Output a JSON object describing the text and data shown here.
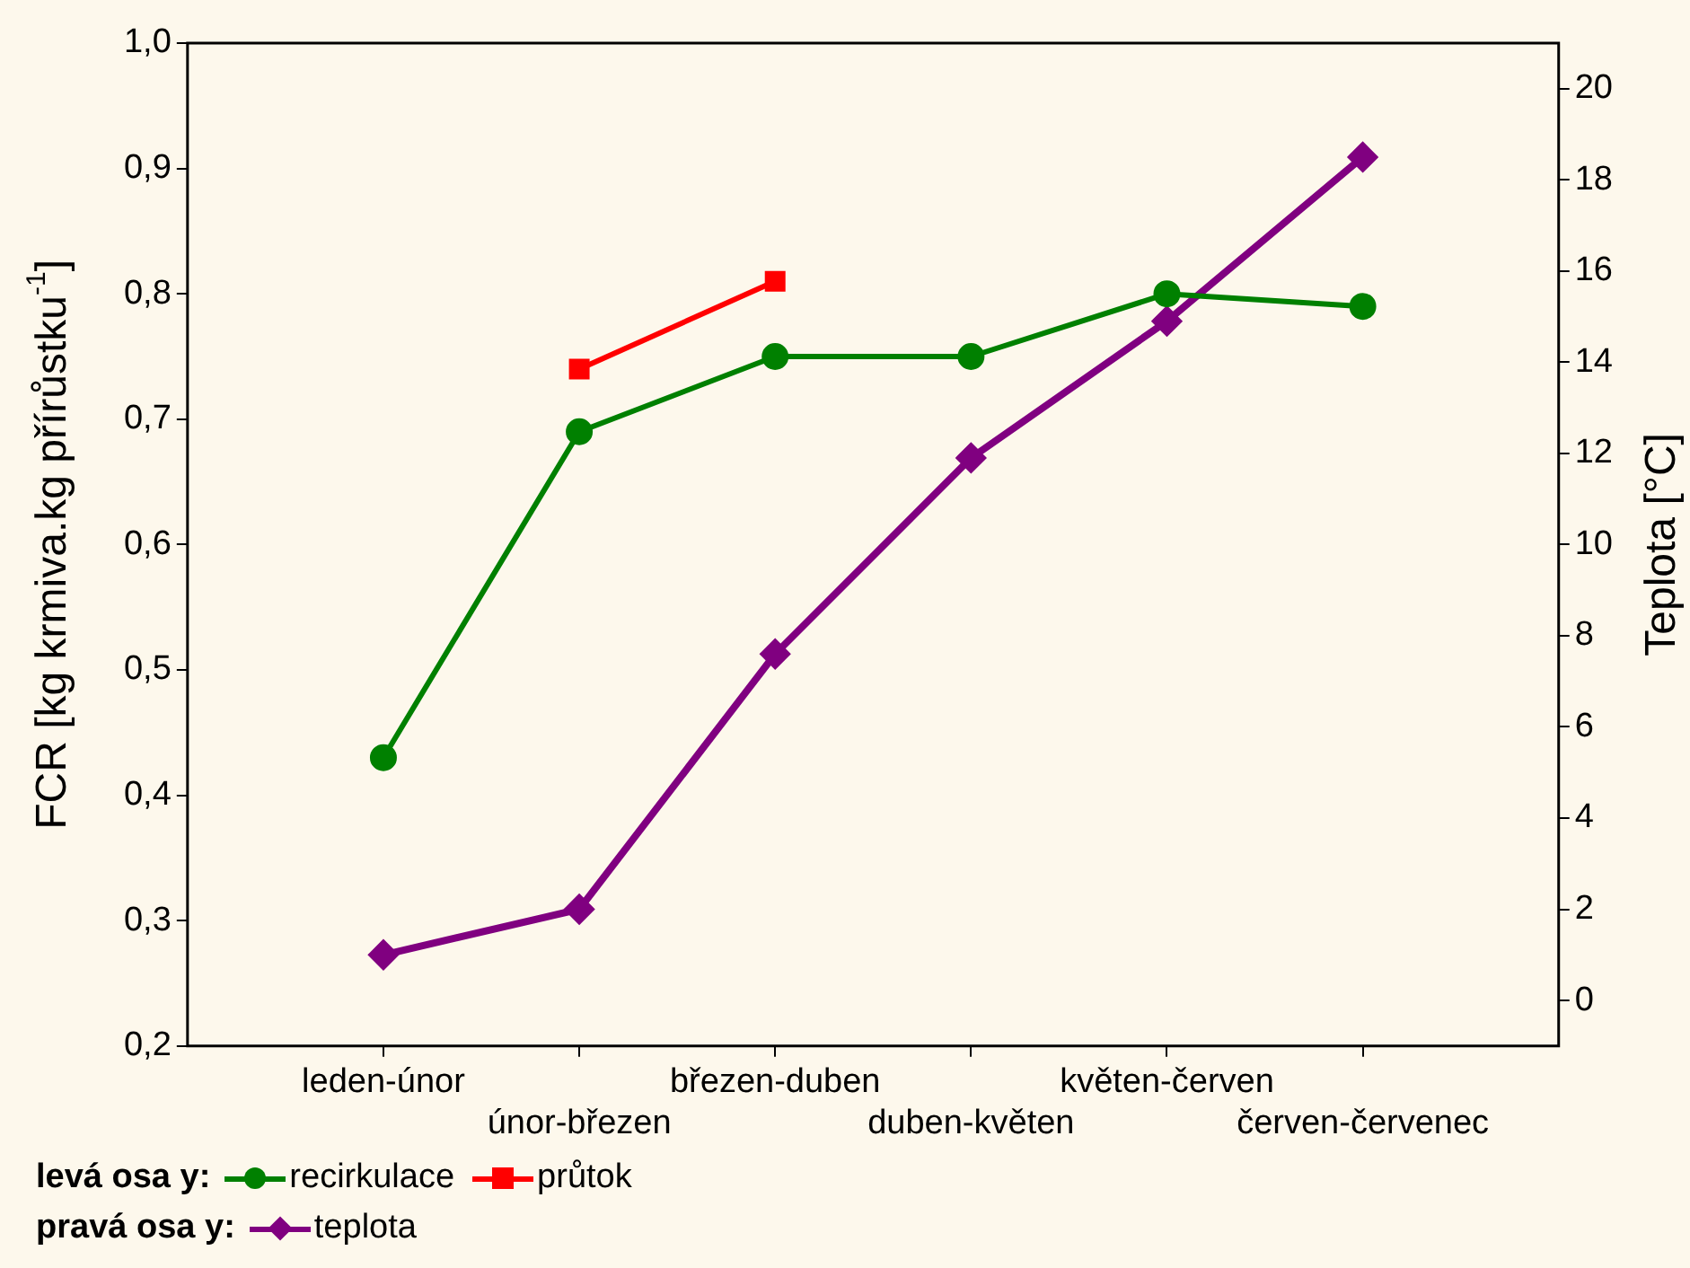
{
  "chart_data": {
    "type": "line",
    "ylabel": "FCR [kg krmiva.kg přírůstku$^{-1}$]",
    "y2label": "Teplota [°C]",
    "categories": [
      "leden-únor",
      "únor-březen",
      "březen-duben",
      "duben-květen",
      "květen-červen",
      "červen-červenec"
    ],
    "series": [
      {
        "name": "recirkulace",
        "color": "#008000",
        "marker": "circle",
        "values": [
          0.43,
          0.69,
          0.75,
          0.75,
          0.8,
          0.79
        ]
      },
      {
        "name": "průtok",
        "color": "#ff0000",
        "marker": "square",
        "values": [
          null,
          0.74,
          0.81,
          null,
          null,
          null
        ]
      },
      {
        "name": "teplota",
        "color": "#800080",
        "marker": "diamond",
        "axis": "y2",
        "values": [
          1.0,
          2.0,
          7.6,
          11.9,
          14.9,
          18.5
        ]
      }
    ],
    "ylim": [
      0.2,
      1.0
    ],
    "yticks": [
      {
        "value": 0.2,
        "label": "0,2"
      },
      {
        "value": 0.3,
        "label": "0,3"
      },
      {
        "value": 0.4,
        "label": "0,4"
      },
      {
        "value": 0.5,
        "label": "0,5"
      },
      {
        "value": 0.6,
        "label": "0,6"
      },
      {
        "value": 0.7,
        "label": "0,7"
      },
      {
        "value": 0.8,
        "label": "0,8"
      },
      {
        "value": 0.9,
        "label": "0,9"
      },
      {
        "value": 1.0,
        "label": "1,0"
      }
    ],
    "y2lim": [
      -1,
      21
    ],
    "y2ticks": [
      0,
      2,
      4,
      6,
      8,
      10,
      12,
      14,
      16,
      18,
      20
    ],
    "annotations": [
      "levá osa y:",
      "pravá osa y:"
    ],
    "legend": "bottom left",
    "grid": false
  }
}
